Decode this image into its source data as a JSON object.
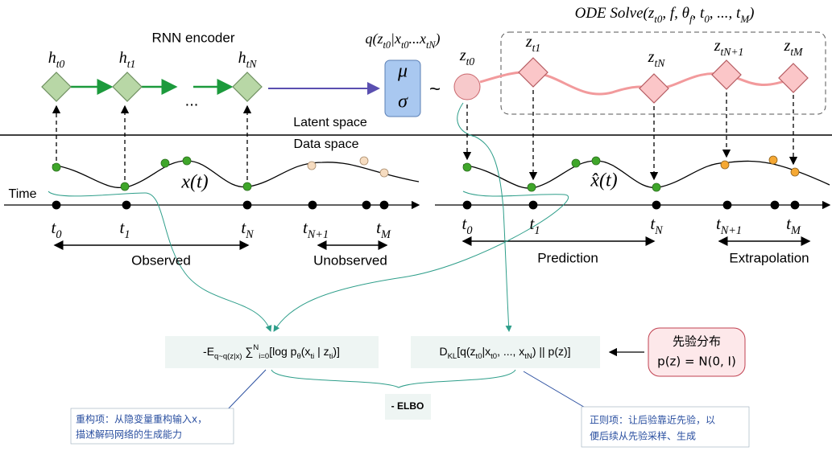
{
  "ode_title": [
    {
      "t": "ODE Solve("
    },
    {
      "t": "z"
    },
    {
      "t": "t0",
      "sub": true
    },
    {
      "t": ", f, θ"
    },
    {
      "t": "f",
      "sub": true
    },
    {
      "t": ", t"
    },
    {
      "t": "0",
      "sub": true
    },
    {
      "t": ", ..., t"
    },
    {
      "t": "M",
      "sub": true
    },
    {
      "t": ")"
    }
  ],
  "encoder": {
    "title": "RNN encoder",
    "nodes": [
      [
        {
          "t": "h"
        },
        {
          "t": "t0",
          "sub": true
        }
      ],
      [
        {
          "t": "h"
        },
        {
          "t": "t1",
          "sub": true
        }
      ],
      [
        {
          "t": "h"
        },
        {
          "t": "tN",
          "sub": true
        }
      ]
    ],
    "ellipsis": "..."
  },
  "posterior": [
    {
      "t": "q(z"
    },
    {
      "t": "t0",
      "sub": true
    },
    {
      "t": "|x"
    },
    {
      "t": "t0",
      "sub": true
    },
    {
      "t": "...x"
    },
    {
      "t": "tN",
      "sub": true
    },
    {
      "t": ")"
    }
  ],
  "mu": "μ",
  "sigma": "σ",
  "tilde": "~",
  "latent_nodes": [
    [
      {
        "t": "z"
      },
      {
        "t": "t0",
        "sub": true
      }
    ],
    [
      {
        "t": "z"
      },
      {
        "t": "t1",
        "sub": true
      }
    ],
    [
      {
        "t": "z"
      },
      {
        "t": "tN",
        "sub": true
      }
    ],
    [
      {
        "t": "z"
      },
      {
        "t": "tN+1",
        "sub": true
      }
    ],
    [
      {
        "t": "z"
      },
      {
        "t": "tM",
        "sub": true
      }
    ]
  ],
  "latent_space": "Latent space",
  "data_space": "Data space",
  "time_label": "Time",
  "x_label": "x(t)",
  "xhat_label": "x̂(t)",
  "time_ticks": [
    [
      {
        "t": "t"
      },
      {
        "t": "0",
        "sub": true
      }
    ],
    [
      {
        "t": "t"
      },
      {
        "t": "1",
        "sub": true
      }
    ],
    [
      {
        "t": "t"
      },
      {
        "t": "N",
        "sub": true
      }
    ],
    [
      {
        "t": "t"
      },
      {
        "t": "N+1",
        "sub": true
      }
    ],
    [
      {
        "t": "t"
      },
      {
        "t": "M",
        "sub": true
      }
    ]
  ],
  "ranges": [
    "Observed",
    "Unobserved",
    "Prediction",
    "Extrapolation"
  ],
  "reconstruction": [
    {
      "t": "-E"
    },
    {
      "t": "q~q(z|x)",
      "sub": true
    },
    {
      "t": " ∑"
    },
    {
      "t": "N",
      "sup": true
    },
    {
      "t": "i=0",
      "sub": true
    },
    {
      "t": "[log p"
    },
    {
      "t": "θ",
      "sub": true
    },
    {
      "t": "(x"
    },
    {
      "t": "ti",
      "sub": true
    },
    {
      "t": " | z"
    },
    {
      "t": "ti",
      "sub": true
    },
    {
      "t": ")]"
    }
  ],
  "kl": [
    {
      "t": "D"
    },
    {
      "t": "KL",
      "sub": true
    },
    {
      "t": "[q(z"
    },
    {
      "t": "t0",
      "sub": true
    },
    {
      "t": "|x"
    },
    {
      "t": "t0",
      "sub": true
    },
    {
      "t": ", ..., x"
    },
    {
      "t": "tN",
      "sub": true
    },
    {
      "t": ") || p(z)]"
    }
  ],
  "prior": {
    "title": "先验分布",
    "formula": "p(z) = N(0, I)"
  },
  "elbo": "- ELBO",
  "note_left": [
    "重构项：从隐变量重构输入x，",
    "描述解码网络的生成能力"
  ],
  "note_right": [
    "正则项：让后验靠近先验，以",
    "便后续从先验采样、生成"
  ]
}
